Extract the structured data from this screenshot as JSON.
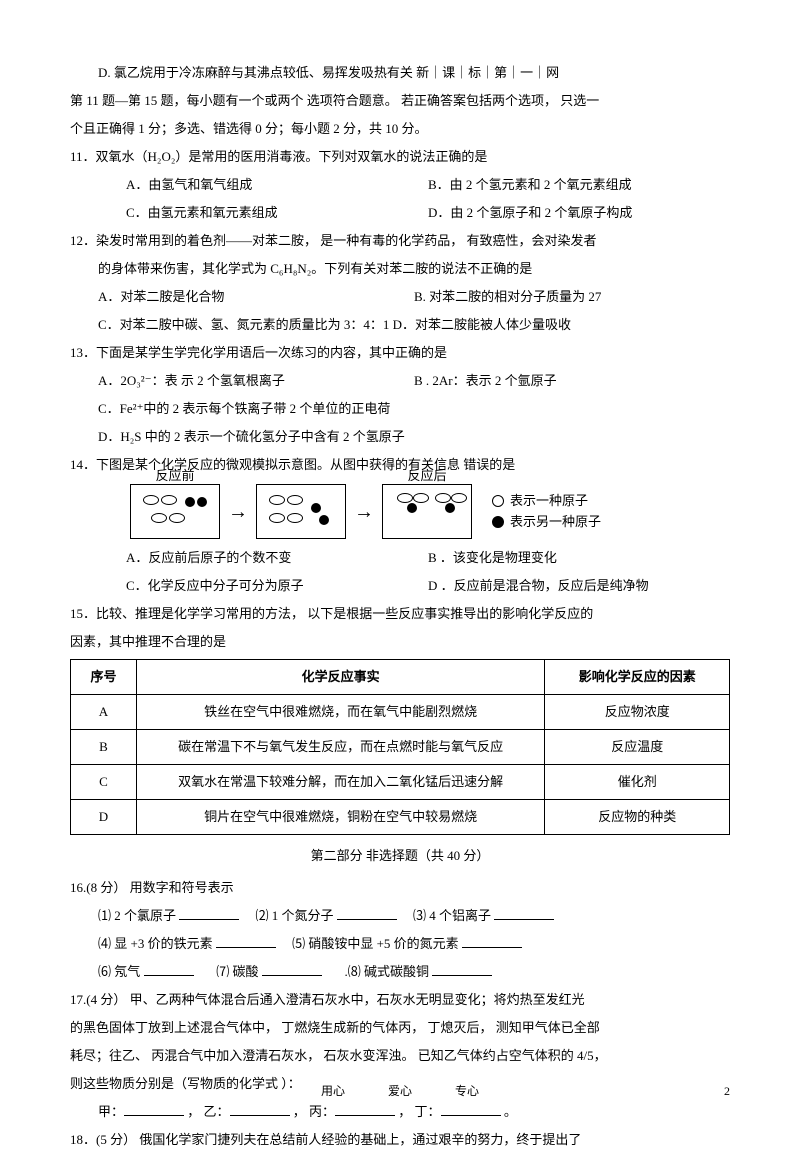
{
  "lines": {
    "d_option": "D. 氯乙烷用于冷冻麻醉与其沸点较低、易挥发吸热有关        新｜课｜标｜第｜一｜网",
    "q11_15_intro": "第 11 题—第 15 题，每小题有一个或两个    选项符合题意。  若正确答案包括两个选项，    只选一",
    "q11_15_intro2": "个且正确得  1 分；多选、错选得    0 分；每小题  2 分，共  10 分。",
    "q11": "11．双氧水（H₂O₂）是常用的医用消毒液。下列对双氧水的说法正确的是",
    "q11a": "A．由氢气和氧气组成",
    "q11b": "B．由  2 个氢元素和  2 个氧元素组成",
    "q11c": "C．由氢元素和氧元素组成",
    "q11d": "D．由  2 个氢原子和  2 个氧原子构成",
    "q12": "12．染发时常用到的着色剂——对苯二胺，      是一种有毒的化学药品，    有致癌性，会对染发者",
    "q12_2": "的身体带来伤害，其化学式为      C₆H₈N₂。下列有关对苯二胺的说法不正确的是",
    "q12a": "A．对苯二胺是化合物",
    "q12b": "B.                      对苯二胺的相对分子质量为      27",
    "q12c": "C．对苯二胺中碳、氢、氮元素的质量比为      3：4：1  D．对苯二胺能被人体少量吸收",
    "q13": "13．下面是某学生学完化学用语后一次练习的内容，其中正确的是",
    "q13a": "A．2O₃²⁻：表 示 2 个氢氧根离子",
    "q13b": "B        . 2Ar：表示  2 个氩原子",
    "q13c": "C．Fe²⁺中的  2 表示每个铁离子带    2 个单位的正电荷",
    "q13d": "D．H₂S 中的 2 表示一个硫化氢分子中含有    2 个氢原子",
    "q14": "14．下图是某个化学反应的微观模拟示意图。从图中获得的有关信息        错误的是",
    "q14a": "A．反应前后原子的个数不变",
    "q14b": "B        ．该变化是物理变化",
    "q14c": "C．化学反应中分子可分为原子",
    "q14d": "D        ．反应前是混合物，反应后是纯净物",
    "q15": "15．比较、推理是化学学习常用的方法，    以下是根据一些反应事实推导出的影响化学反应的",
    "q15_2": "因素，其中推理不合理的是",
    "diagram": {
      "before_label": "反应前",
      "after_label": "反应后",
      "legend1": "表示一种原子",
      "legend2": "表示另一种原子"
    }
  },
  "table15": {
    "headers": [
      "序号",
      "化学反应事实",
      "影响化学反应的因素"
    ],
    "rows": [
      [
        "A",
        "铁丝在空气中很难燃烧，而在氧气中能剧烈燃烧",
        "反应物浓度"
      ],
      [
        "B",
        "碳在常温下不与氧气发生反应，而在点燃时能与氧气反应",
        "反应温度"
      ],
      [
        "C",
        "双氧水在常温下较难分解，而在加入二氧化锰后迅速分解",
        "催化剂"
      ],
      [
        "D",
        "铜片在空气中很难燃烧，铜粉在空气中较易燃烧",
        "反应物的种类"
      ]
    ]
  },
  "part2": {
    "title": "第二部分      非选择题（共    40 分）",
    "q16": "16.(8  分）  用数字和符号表示",
    "q16_1a": "⑴ 2 个氯原子",
    "q16_1b": "⑵ 1 个氮分子",
    "q16_1c": "⑶ 4 个铝离子",
    "q16_2a": "⑷ 显 +3 价的铁元素",
    "q16_2b": "⑸ 硝酸铵中显  +5 价的氮元素",
    "q16_3a": "⑹ 氖气",
    "q16_3b": "⑺ 碳酸",
    "q16_3c": ".⑻ 碱式碳酸铜",
    "q17": "17.(4  分）  甲、乙两种气体混合后通入澄清石灰水中，石灰水无明显变化；将灼热至发红光",
    "q17_2": "的黑色固体丁放到上述混合气体中，    丁燃烧生成新的气体丙，    丁熄灭后，  测知甲气体已全部",
    "q17_3": "耗尽；往乙、 丙混合气中加入澄清石灰水，    石灰水变浑浊。  已知乙气体约占空气体积的    4/5，",
    "q17_4": "则这些物质分别是（写物质的化学式    ）：",
    "q17_ans_a": "甲：",
    "q17_ans_b": "，  乙：",
    "q17_ans_c": "，  丙：",
    "q17_ans_d": "，  丁：",
    "q17_ans_e": "。",
    "q18": "18．(5    分）  俄国化学家门捷列夫在总结前人经验的基础上，通过艰辛的努力，终于提出了"
  },
  "footer": {
    "a": "用心",
    "b": "爱心",
    "c": "专心",
    "page": "2"
  }
}
